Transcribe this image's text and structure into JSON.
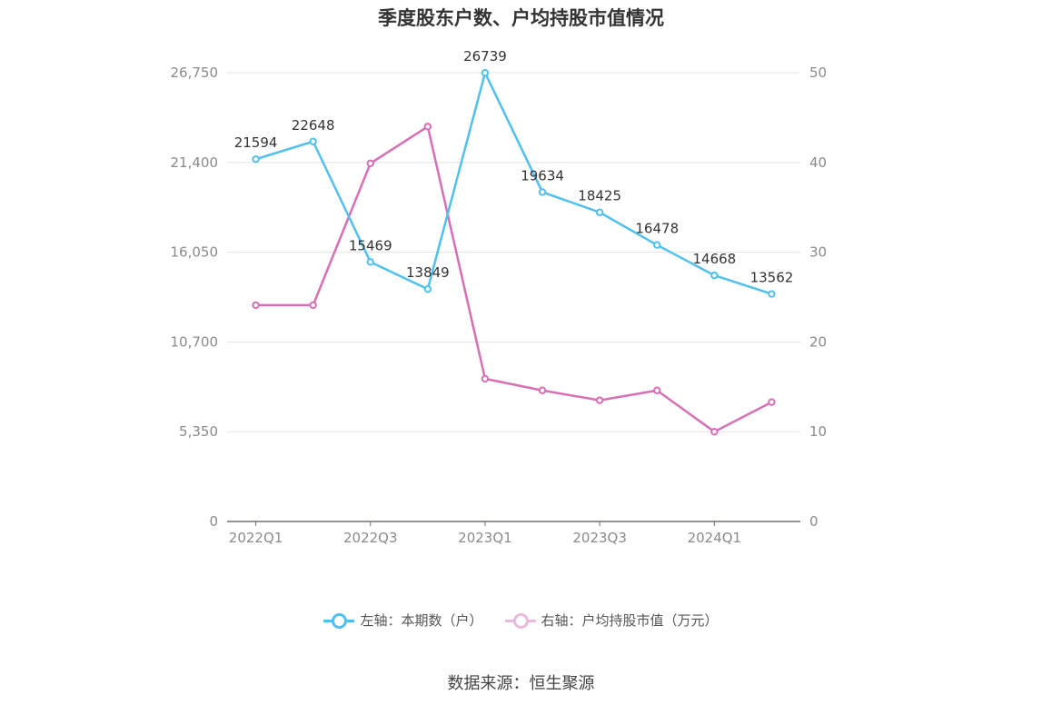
{
  "title": "季度股东户数、户均持股市值情况",
  "source": "数据来源：恒生聚源",
  "colors": {
    "series1": "#4fc0f0",
    "series2": "#d86fb4",
    "grid": "#e0e3ea",
    "axis": "#6e7079"
  },
  "legend": [
    {
      "label": "左轴：本期数（户）",
      "color": "#4fc0f0"
    },
    {
      "label": "右轴：户均持股市值（万元）",
      "color": "#d86fb4"
    }
  ],
  "chart_data": {
    "type": "line",
    "title": "季度股东户数、户均持股市值情况",
    "x": [
      "2022Q1",
      "2022Q2",
      "2022Q3",
      "2022Q4",
      "2023Q1",
      "2023Q2",
      "2023Q3",
      "2023Q4",
      "2024Q1",
      "2024Q2"
    ],
    "x_tick_labels": [
      "2022Q1",
      "",
      "2022Q3",
      "",
      "2023Q1",
      "",
      "2023Q3",
      "",
      "2024Q1",
      ""
    ],
    "y_left": {
      "ticks": [
        "0",
        "5,350",
        "10,700",
        "16,050",
        "21,400",
        "26,750"
      ],
      "range": [
        0,
        26750
      ]
    },
    "y_right": {
      "ticks": [
        "0",
        "10",
        "20",
        "30",
        "40",
        "50"
      ],
      "range": [
        0,
        50
      ]
    },
    "grid": true,
    "legend_position": "bottom",
    "series": [
      {
        "name": "左轴：本期数（户）",
        "axis": "left",
        "values": [
          21594,
          22648,
          15469,
          13849,
          26739,
          19634,
          18425,
          16478,
          14668,
          13562
        ],
        "labels": [
          "21594",
          "22648",
          "15469",
          "13849",
          "26739",
          "19634",
          "18425",
          "16478",
          "14668",
          "13562"
        ]
      },
      {
        "name": "右轴：户均持股市值（万元）",
        "axis": "right",
        "values": [
          24.1,
          24.1,
          39.9,
          44.0,
          15.9,
          14.6,
          13.5,
          14.6,
          10.0,
          13.3
        ]
      }
    ]
  }
}
